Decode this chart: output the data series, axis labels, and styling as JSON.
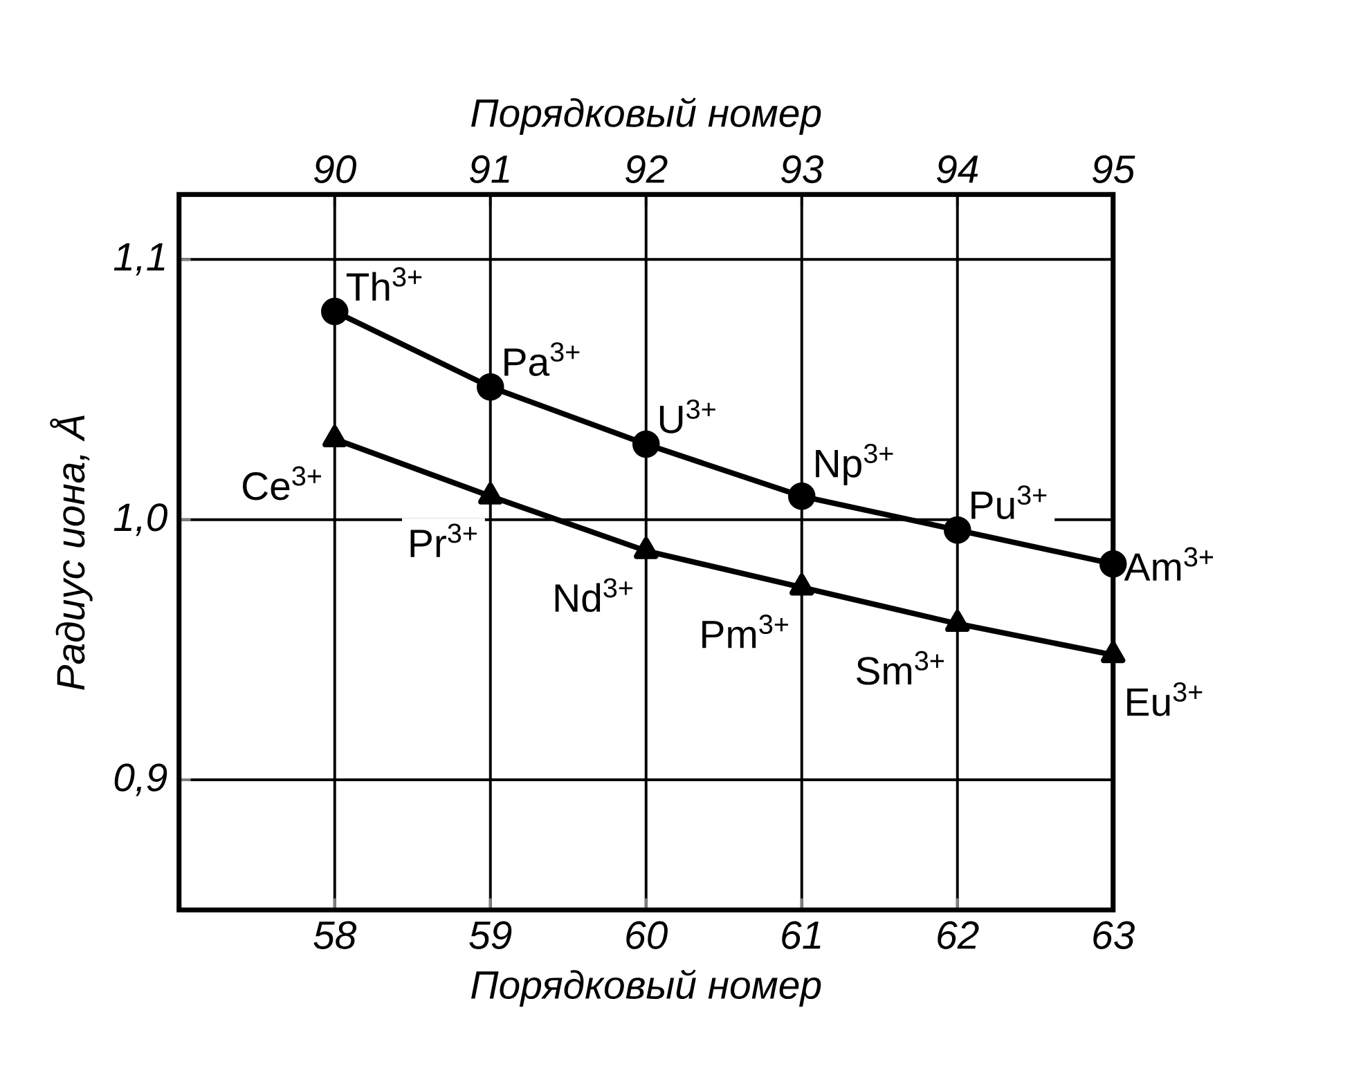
{
  "chart_data": {
    "type": "line",
    "x": [
      58,
      59,
      60,
      61,
      62,
      63
    ],
    "series": [
      {
        "color": "#000000",
        "marker": "circle",
        "values": [
          1.08,
          1.051,
          1.029,
          1.009,
          0.996,
          0.983
        ]
      },
      {
        "color": "#000000",
        "marker": "triangle",
        "values": [
          1.031,
          1.009,
          0.988,
          0.974,
          0.96,
          0.948
        ]
      }
    ],
    "xlabel": "Порядковый номер",
    "x2label": "Порядковый номер",
    "ylabel": "Радиус иона, Å",
    "xlim": [
      57,
      63
    ],
    "xticks": [
      58,
      59,
      60,
      61,
      62,
      63
    ],
    "x2lim": [
      89,
      95
    ],
    "x2ticks": [
      90,
      91,
      92,
      93,
      94,
      95
    ],
    "ylim": [
      0.85,
      1.125
    ],
    "yticks": [
      {
        "value": 0.9,
        "label": "0,9"
      },
      {
        "value": 1.0,
        "label": "1,0"
      },
      {
        "value": 1.1,
        "label": "1,1"
      }
    ],
    "grid": true,
    "line_style": "solid",
    "annotations": [
      {
        "text": "Th$^{3+}$",
        "x": 58,
        "y": 1.08
      },
      {
        "text": "Pa$^{3+}$",
        "x": 59,
        "y": 1.051
      },
      {
        "text": "U$^{3+}$",
        "x": 60,
        "y": 1.029
      },
      {
        "text": "Np$^{3+}$",
        "x": 61,
        "y": 1.009
      },
      {
        "text": "Pu$^{3+}$",
        "x": 62,
        "y": 0.996
      },
      {
        "text": "Am$^{3+}$",
        "x": 63,
        "y": 0.983
      },
      {
        "text": "Ce$^{3+}$",
        "x": 58,
        "y": 1.031
      },
      {
        "text": "Pr$^{3+}$",
        "x": 59,
        "y": 1.009
      },
      {
        "text": "Nd$^{3+}$",
        "x": 60,
        "y": 0.988
      },
      {
        "text": "Pm$^{3+}$",
        "x": 61,
        "y": 0.974
      },
      {
        "text": "Sm$^{3+}$",
        "x": 62,
        "y": 0.96
      },
      {
        "text": "Eu$^{3+}$",
        "x": 63,
        "y": 0.948
      }
    ]
  }
}
